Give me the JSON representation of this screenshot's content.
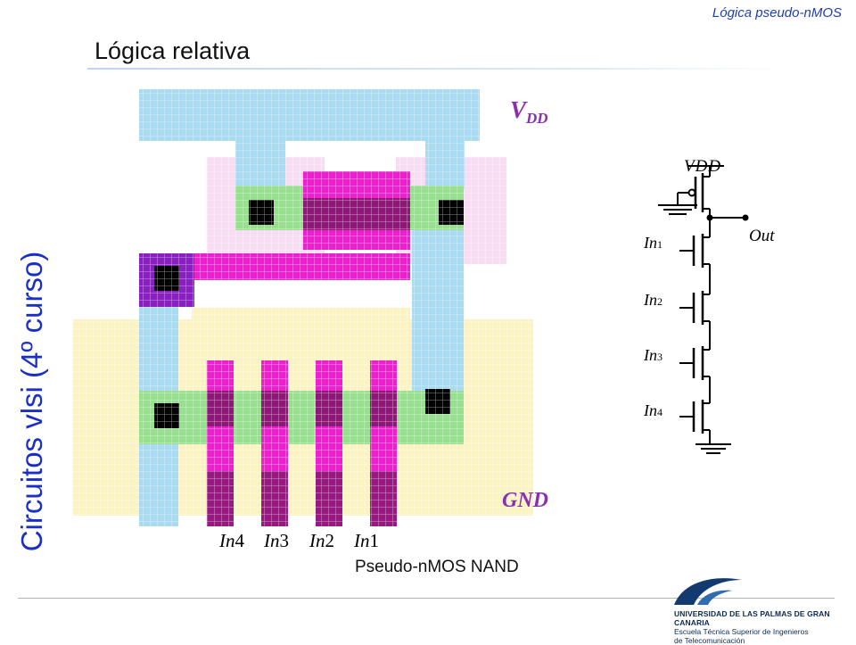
{
  "header": {
    "topic": "Lógica pseudo-nMOS",
    "title": "Lógica relativa"
  },
  "sidebar": {
    "text": "Circuitos vlsi (4º curso)"
  },
  "layout": {
    "vdd_main": "V",
    "vdd_sub": "DD",
    "gnd": "GND",
    "inputs": [
      {
        "letters": "In",
        "digit": "4"
      },
      {
        "letters": "In",
        "digit": "3"
      },
      {
        "letters": "In",
        "digit": "2"
      },
      {
        "letters": "In",
        "digit": "1"
      }
    ],
    "caption": "Pseudo-nMOS NAND"
  },
  "schematic": {
    "vdd": "VDD",
    "out": "Out",
    "inputs": [
      {
        "letters": "In",
        "digit": "1"
      },
      {
        "letters": "In",
        "digit": "2"
      },
      {
        "letters": "In",
        "digit": "3"
      },
      {
        "letters": "In",
        "digit": "4"
      }
    ]
  },
  "footer": {
    "line1": "UNIVERSIDAD DE LAS PALMAS DE GRAN CANARIA",
    "line2": "Escuela Técnica Superior de Ingenieros",
    "line3": "de Telecomunicación"
  },
  "colors": {
    "metal": "#a9dbf2",
    "diffusion": "#96e08e",
    "poly": "#ee1fcf",
    "nwell": "#f7dcf2",
    "pselect": "#fbf4c2",
    "contact": "#000000",
    "via": "#8b1fc4"
  }
}
